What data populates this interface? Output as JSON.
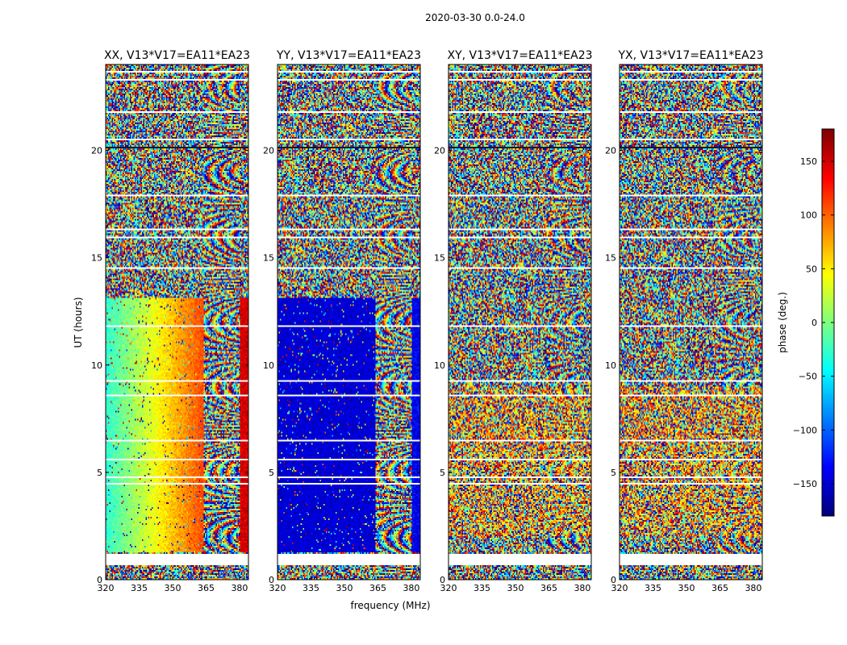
{
  "figure": {
    "suptitle": "2020-03-30 0.0-24.0",
    "xlabel": "frequency (MHz)",
    "ylabel": "UT (hours)",
    "colorbar_label": "phase (deg.)"
  },
  "chart_data": {
    "type": "heatmap",
    "colormap": "jet",
    "colormap_stops": [
      "#00007f",
      "#0000ff",
      "#007fff",
      "#00ffff",
      "#7fff7f",
      "#ffff00",
      "#ff7f00",
      "#ff0000",
      "#7f0000"
    ],
    "xlim": [
      320,
      384
    ],
    "ylim": [
      0,
      24
    ],
    "xticks": [
      320,
      335,
      350,
      365,
      380
    ],
    "yticks": [
      0,
      5,
      10,
      15,
      20
    ],
    "clim": [
      -180,
      180
    ],
    "cticks": [
      150,
      100,
      50,
      0,
      -50,
      -100,
      -150
    ],
    "cticks_text": [
      "150",
      "100",
      "50",
      "0",
      "−50",
      "−100",
      "−150"
    ],
    "panels": [
      {
        "title": "XX, V13*V17=EA11*EA23",
        "pol": "XX"
      },
      {
        "title": "YY, V13*V17=EA11*EA23",
        "pol": "YY"
      },
      {
        "title": "XY, V13*V17=EA11*EA23",
        "pol": "XY"
      },
      {
        "title": "YX, V13*V17=EA11*EA23",
        "pol": "YX"
      }
    ]
  }
}
